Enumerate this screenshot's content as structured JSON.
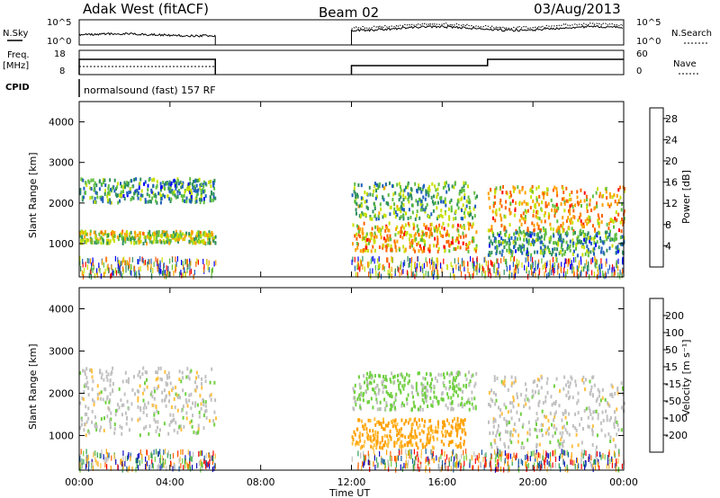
{
  "header": {
    "station": "Adak West (fitACF)",
    "beam": "Beam 02",
    "date": "03/Aug/2013"
  },
  "panels": {
    "nsky_label": "N.Sky",
    "nsearch_label": "N.Search",
    "freq_label_1": "Freq.",
    "freq_label_2": "[MHz]",
    "nave_label": "Nave",
    "cpid_label": "CPID",
    "cpid_text": "normalsound (fast) 157 RF",
    "noise_ticks": [
      "10^5",
      "10^0"
    ],
    "freq_ticks": [
      "18",
      "8"
    ],
    "nave_ticks": [
      "60",
      "0"
    ]
  },
  "colors": {
    "power_scale": [
      "#0000ff",
      "#1f5fbf",
      "#2f8f5f",
      "#5fbf3f",
      "#c8e000",
      "#ffa000",
      "#ff6000",
      "#ff0000"
    ],
    "velocity_scale": [
      "#ff0000",
      "#ff6000",
      "#ffa000",
      "#ffc040",
      "#c0c0c0",
      "#70d040",
      "#2f9f4f",
      "#1a5fa0",
      "#1010c0"
    ]
  },
  "chart_data": [
    {
      "type": "heatmap",
      "panel": "power",
      "ylabel": "Slant Range [km]",
      "ylim": [
        180,
        4500
      ],
      "yticks": [
        "1000",
        "2000",
        "3000",
        "4000"
      ],
      "colorbar_label": "Power [dB]",
      "colorbar_ticks": [
        "4",
        "8",
        "12",
        "16",
        "20",
        "24",
        "28"
      ],
      "colorbar_range": [
        0,
        30
      ],
      "data_gaps_ut": [
        [
          6.0,
          12.0
        ]
      ],
      "echo_bands": [
        {
          "start_ut": 0.0,
          "end_ut": 6.0,
          "range_km": [
            1000,
            1300
          ],
          "power_db": 16
        },
        {
          "start_ut": 0.0,
          "end_ut": 6.0,
          "range_km": [
            2000,
            2600
          ],
          "power_db": 10
        },
        {
          "start_ut": 12.0,
          "end_ut": 17.5,
          "range_km": [
            800,
            1500
          ],
          "power_db": 20
        },
        {
          "start_ut": 12.0,
          "end_ut": 17.5,
          "range_km": [
            1600,
            2500
          ],
          "power_db": 12
        },
        {
          "start_ut": 18.0,
          "end_ut": 24.0,
          "range_km": [
            1300,
            2400
          ],
          "power_db": 20
        },
        {
          "start_ut": 18.0,
          "end_ut": 24.0,
          "range_km": [
            700,
            1300
          ],
          "power_db": 10
        }
      ]
    },
    {
      "type": "heatmap",
      "panel": "velocity",
      "xlabel": "Time UT",
      "ylabel": "Slant Range [km]",
      "ylim": [
        180,
        4500
      ],
      "yticks": [
        "1000",
        "2000",
        "3000",
        "4000"
      ],
      "xticks": [
        "00:00",
        "04:00",
        "08:00",
        "12:00",
        "16:00",
        "20:00",
        "00:00"
      ],
      "x_range_ut": [
        0,
        24
      ],
      "colorbar_label": "Velocity [m s⁻¹]",
      "colorbar_ticks": [
        "-200",
        "-100",
        "-50",
        "-15",
        "15",
        "50",
        "100",
        "200"
      ],
      "data_gaps_ut": [
        [
          6.0,
          12.0
        ]
      ],
      "echo_bands": [
        {
          "start_ut": 0.0,
          "end_ut": 6.0,
          "range_km": [
            1000,
            2600
          ],
          "velocity_ms": 0
        },
        {
          "start_ut": 12.0,
          "end_ut": 17.0,
          "range_km": [
            700,
            1400
          ],
          "velocity_ms": -60
        },
        {
          "start_ut": 12.0,
          "end_ut": 17.5,
          "range_km": [
            1600,
            2500
          ],
          "velocity_ms": 20
        },
        {
          "start_ut": 18.0,
          "end_ut": 24.0,
          "range_km": [
            700,
            2400
          ],
          "velocity_ms": 0
        }
      ]
    }
  ]
}
